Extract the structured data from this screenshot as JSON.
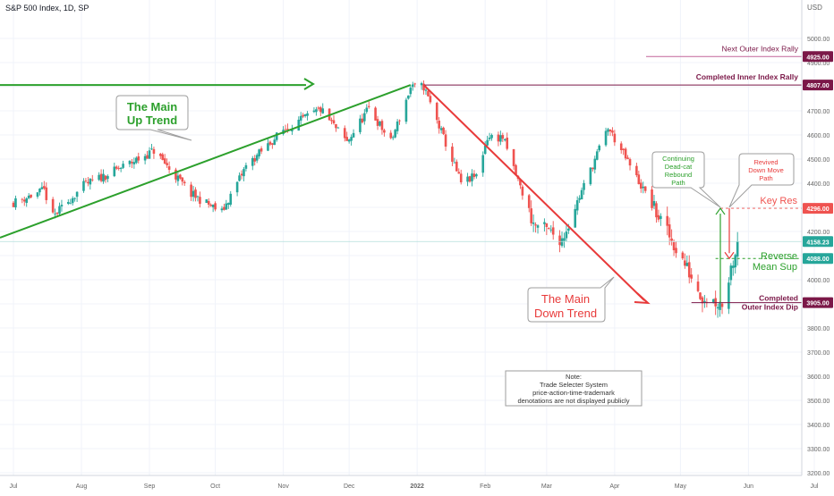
{
  "header": {
    "symbol_label": "S&P 500 Index, 1D, SP",
    "currency": "USD"
  },
  "colors": {
    "up": "#26a69a",
    "down": "#ef5350",
    "uptrend": "#2ca02c",
    "downtrend": "#e83a3a",
    "purple": "#7b1848",
    "magenta_light": "#c4669a",
    "green_text": "#2ca02c",
    "price_tag": "#26a69a",
    "grid": "#f0f3fa",
    "axis_text": "#666666"
  },
  "chart_data": {
    "type": "candlestick",
    "y_axis": {
      "min": 3200,
      "max": 5100,
      "ticks": [
        3200,
        3300,
        3400,
        3500,
        3600,
        3700,
        3800,
        3900,
        4000,
        4100,
        4200,
        4300,
        4400,
        4500,
        4600,
        4700,
        4800,
        4900,
        5000
      ]
    },
    "x_axis": {
      "months": [
        "Jul",
        "Aug",
        "Sep",
        "Oct",
        "Nov",
        "Dec",
        "2022",
        "Feb",
        "Mar",
        "Apr",
        "May",
        "Jun",
        "Jul"
      ]
    },
    "price_path": [
      [
        "2021-07-01",
        4320
      ],
      [
        "2021-07-15",
        4370
      ],
      [
        "2021-07-19",
        4260
      ],
      [
        "2021-08-02",
        4390
      ],
      [
        "2021-08-16",
        4450
      ],
      [
        "2021-08-31",
        4520
      ],
      [
        "2021-09-03",
        4535
      ],
      [
        "2021-09-20",
        4355
      ],
      [
        "2021-09-30",
        4300
      ],
      [
        "2021-10-04",
        4280
      ],
      [
        "2021-10-15",
        4470
      ],
      [
        "2021-11-01",
        4620
      ],
      [
        "2021-11-18",
        4705
      ],
      [
        "2021-11-30",
        4570
      ],
      [
        "2021-12-10",
        4710
      ],
      [
        "2021-12-20",
        4570
      ],
      [
        "2021-12-29",
        4795
      ],
      [
        "2022-01-04",
        4800
      ],
      [
        "2022-01-21",
        4400
      ],
      [
        "2022-01-28",
        4430
      ],
      [
        "2022-02-02",
        4590
      ],
      [
        "2022-02-09",
        4590
      ],
      [
        "2022-02-23",
        4230
      ],
      [
        "2022-03-08",
        4170
      ],
      [
        "2022-03-29",
        4630
      ],
      [
        "2022-04-05",
        4520
      ],
      [
        "2022-04-29",
        4130
      ],
      [
        "2022-05-11",
        3930
      ],
      [
        "2022-05-20",
        3900
      ],
      [
        "2022-05-27",
        4158.23
      ]
    ],
    "last_price": 4158.23,
    "levels": [
      {
        "label": "Next Outer Index Rally",
        "value": 4925.0,
        "tag": "4925.00"
      },
      {
        "label": "Completed Inner Index Rally",
        "value": 4807.0,
        "tag": "4807.00"
      },
      {
        "label": "Key Res",
        "value": 4296.0,
        "tag": "4296.00"
      },
      {
        "label": "Reverse Mean Sup",
        "value": 4088.0,
        "tag": "4088.00"
      },
      {
        "label": "Completed Outer Index Dip",
        "value": 3905.0,
        "tag": "3905.00"
      }
    ],
    "last_price_tag": "4158.23",
    "annotations": {
      "up_trend": [
        "The Main",
        "Up Trend"
      ],
      "down_trend": [
        "The Main",
        "Down Trend"
      ],
      "continuing": [
        "Continuing",
        "Dead-cat",
        "Rebound",
        "Path"
      ],
      "revived": [
        "Revived",
        "Down Move",
        "Path"
      ],
      "key_res": "Key Res",
      "reverse_mean_sup": [
        "Reverse",
        "Mean Sup"
      ],
      "completed_outer": [
        "Completed",
        "Outer Index Dip"
      ],
      "note": [
        "Note:",
        "Trade Selecter System",
        "price-action-time-trademark",
        "denotations are not displayed publicly"
      ]
    }
  }
}
